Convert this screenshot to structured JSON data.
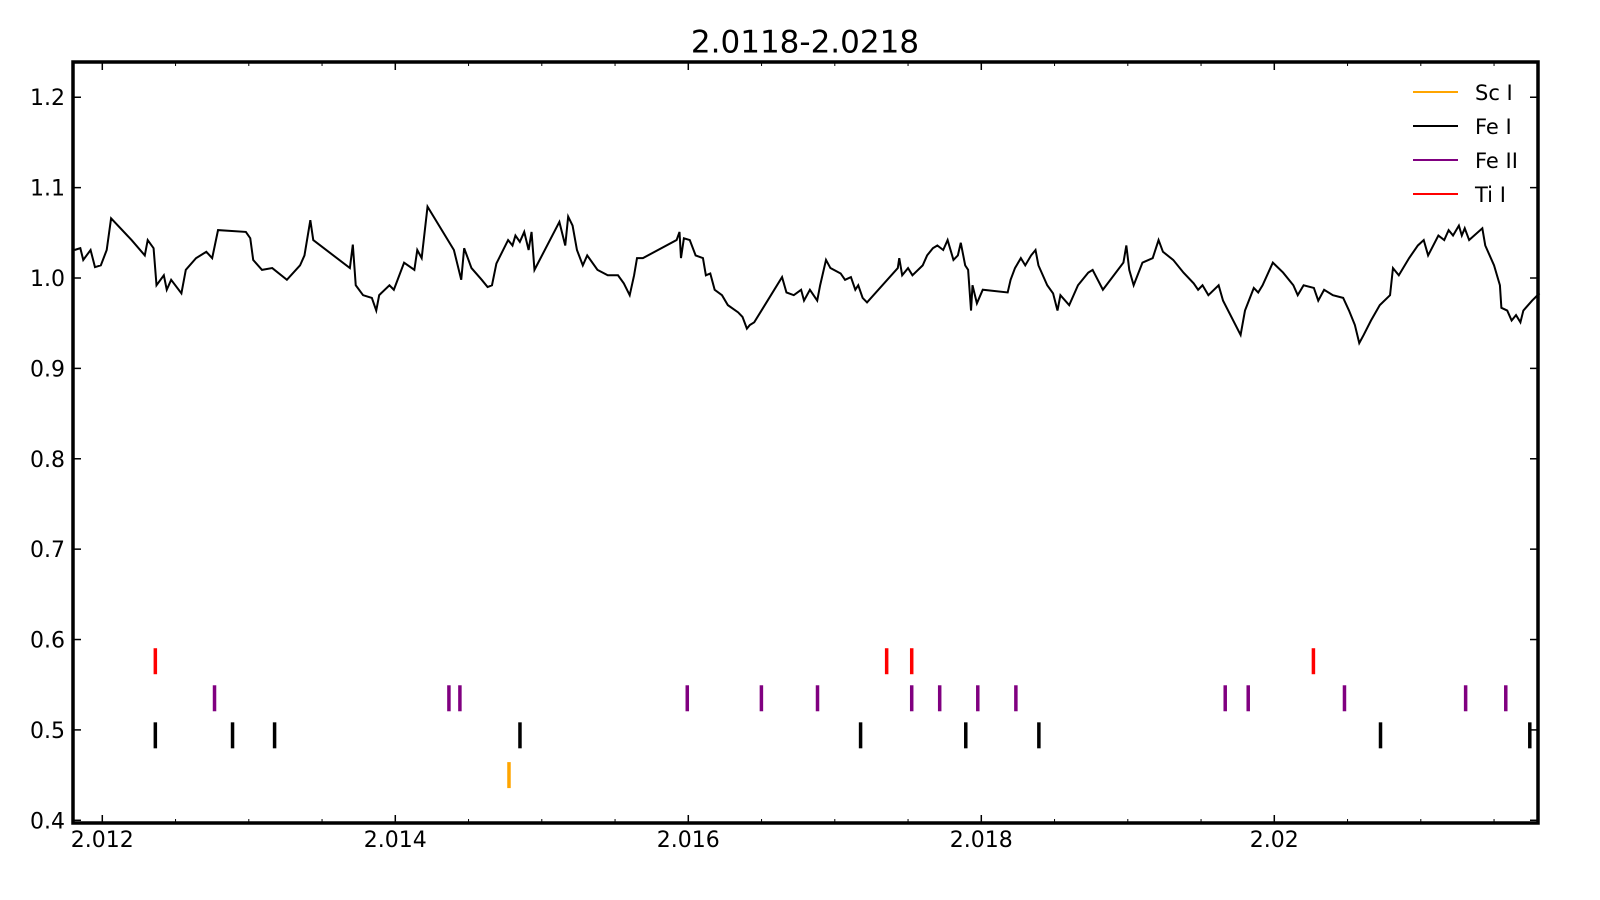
{
  "chart_data": {
    "type": "spectrum",
    "title": "2.0118-2.0218",
    "xlim": [
      2.0118,
      2.0218
    ],
    "ylim": [
      0.397,
      1.239
    ],
    "xticks": [
      2.012,
      2.014,
      2.016,
      2.018,
      2.02
    ],
    "xminorticks": [
      2.0125,
      2.013,
      2.0135,
      2.0145,
      2.015,
      2.0155,
      2.0165,
      2.017,
      2.0175,
      2.0185,
      2.019,
      2.0195,
      2.0205,
      2.021,
      2.0215
    ],
    "yticks": [
      0.4,
      0.5,
      0.6,
      0.7,
      0.8,
      0.9,
      {
        "value": 1,
        "label": "1.0"
      },
      1.1,
      1.2
    ],
    "legend": "upper right",
    "spectrum": {
      "color": "#000000",
      "x": [
        2.01181,
        2.01185,
        2.01187,
        2.01192,
        2.01195,
        2.01199,
        2.01203,
        2.01206,
        2.0122,
        2.01229,
        2.01231,
        2.01235,
        2.01237,
        2.01242,
        2.01244,
        2.01247,
        2.01254,
        2.01257,
        2.01264,
        2.01271,
        2.01275,
        2.01279,
        2.01298,
        2.01301,
        2.01303,
        2.01309,
        2.01316,
        2.01326,
        2.01335,
        2.01338,
        2.01342,
        2.01344,
        2.01369,
        2.01371,
        2.01373,
        2.01378,
        2.01384,
        2.01387,
        2.01389,
        2.01396,
        2.01399,
        2.01406,
        2.01413,
        2.01415,
        2.01418,
        2.01422,
        2.0144,
        2.01445,
        2.01447,
        2.01452,
        2.01459,
        2.01463,
        2.01466,
        2.01469,
        2.01477,
        2.0148,
        2.01482,
        2.01485,
        2.01488,
        2.01491,
        2.01493,
        2.01495,
        2.01512,
        2.01516,
        2.01518,
        2.01521,
        2.01524,
        2.01528,
        2.01531,
        2.01538,
        2.01545,
        2.01552,
        2.01556,
        2.0156,
        2.01563,
        2.01565,
        2.01569,
        2.01592,
        2.01594,
        2.01595,
        2.01597,
        2.01601,
        2.01605,
        2.0161,
        2.01612,
        2.01615,
        2.01618,
        2.01623,
        2.01627,
        2.01634,
        2.01637,
        2.0164,
        2.01642,
        2.01645,
        2.01664,
        2.01667,
        2.01672,
        2.01677,
        2.01679,
        2.01683,
        2.01688,
        2.0169,
        2.01694,
        2.01697,
        2.01704,
        2.01707,
        2.01711,
        2.01714,
        2.01716,
        2.01719,
        2.01722,
        2.01743,
        2.01744,
        2.01746,
        2.0175,
        2.01753,
        2.0176,
        2.01763,
        2.01767,
        2.0177,
        2.01774,
        2.01777,
        2.01781,
        2.01784,
        2.01786,
        2.01789,
        2.01791,
        2.01793,
        2.01794,
        2.01797,
        2.01801,
        2.01818,
        2.0182,
        2.01823,
        2.01827,
        2.0183,
        2.01834,
        2.01837,
        2.01839,
        2.01845,
        2.01849,
        2.01852,
        2.01854,
        2.0186,
        2.01866,
        2.01873,
        2.01876,
        2.01883,
        2.01897,
        2.01899,
        2.01901,
        2.01904,
        2.0191,
        2.01917,
        2.01921,
        2.01924,
        2.01931,
        2.01938,
        2.01945,
        2.01948,
        2.01951,
        2.01955,
        2.01962,
        2.01965,
        2.01977,
        2.0198,
        2.01986,
        2.01989,
        2.01992,
        2.01999,
        2.02006,
        2.02013,
        2.02016,
        2.0202,
        2.02027,
        2.0203,
        2.02034,
        2.0204,
        2.02047,
        2.02051,
        2.02055,
        2.02058,
        2.02061,
        2.02066,
        2.02072,
        2.02079,
        2.02081,
        2.02085,
        2.02092,
        2.02098,
        2.02102,
        2.02105,
        2.02112,
        2.02116,
        2.02119,
        2.02122,
        2.02126,
        2.02128,
        2.0213,
        2.02133,
        2.02142,
        2.02144,
        2.0215,
        2.02154,
        2.02155,
        2.02159,
        2.02162,
        2.02165,
        2.02168,
        2.0217,
        2.02176,
        2.02181
      ],
      "values": [
        1.031,
        1.033,
        1.02,
        1.031,
        1.012,
        1.014,
        1.031,
        1.066,
        1.042,
        1.025,
        1.042,
        1.033,
        0.992,
        1.003,
        0.987,
        0.998,
        0.983,
        1.009,
        1.022,
        1.029,
        1.022,
        1.053,
        1.051,
        1.044,
        1.02,
        1.009,
        1.011,
        0.998,
        1.014,
        1.025,
        1.064,
        1.042,
        1.011,
        1.037,
        0.992,
        0.981,
        0.978,
        0.964,
        0.981,
        0.992,
        0.987,
        1.017,
        1.009,
        1.031,
        1.022,
        1.079,
        1.031,
        0.998,
        1.033,
        1.011,
        0.998,
        0.99,
        0.992,
        1.016,
        1.042,
        1.036,
        1.047,
        1.04,
        1.051,
        1.031,
        1.051,
        1.009,
        1.062,
        1.036,
        1.068,
        1.058,
        1.031,
        1.014,
        1.025,
        1.009,
        1.003,
        1.003,
        0.994,
        0.981,
        1.003,
        1.022,
        1.022,
        1.042,
        1.051,
        1.022,
        1.044,
        1.042,
        1.025,
        1.022,
        1.003,
        1.005,
        0.987,
        0.981,
        0.97,
        0.962,
        0.957,
        0.944,
        0.948,
        0.951,
        1.001,
        0.984,
        0.981,
        0.987,
        0.975,
        0.987,
        0.975,
        0.992,
        1.02,
        1.011,
        1.005,
        0.998,
        1.001,
        0.987,
        0.992,
        0.978,
        0.973,
        1.011,
        1.022,
        1.003,
        1.011,
        1.003,
        1.014,
        1.025,
        1.033,
        1.036,
        1.031,
        1.042,
        1.02,
        1.025,
        1.039,
        1.014,
        1.009,
        0.964,
        0.992,
        0.972,
        0.987,
        0.984,
        0.998,
        1.011,
        1.022,
        1.014,
        1.025,
        1.031,
        1.014,
        0.992,
        0.983,
        0.964,
        0.981,
        0.97,
        0.992,
        1.006,
        1.009,
        0.987,
        1.017,
        1.036,
        1.009,
        0.992,
        1.017,
        1.022,
        1.042,
        1.029,
        1.02,
        1.006,
        0.994,
        0.987,
        0.992,
        0.981,
        0.992,
        0.975,
        0.937,
        0.964,
        0.989,
        0.984,
        0.992,
        1.017,
        1.006,
        0.992,
        0.981,
        0.992,
        0.989,
        0.975,
        0.987,
        0.981,
        0.978,
        0.964,
        0.948,
        0.928,
        0.937,
        0.953,
        0.97,
        0.981,
        1.011,
        1.003,
        1.022,
        1.036,
        1.042,
        1.025,
        1.047,
        1.042,
        1.053,
        1.047,
        1.058,
        1.047,
        1.055,
        1.042,
        1.055,
        1.036,
        1.014,
        0.992,
        0.967,
        0.964,
        0.953,
        0.959,
        0.951,
        0.964,
        0.975,
        0.983
      ]
    },
    "lines": [
      {
        "name": "Sc I",
        "color": "#ffa500",
        "level": 0.45,
        "x": [
          2.014776
        ]
      },
      {
        "name": "Fe I",
        "color": "#000000",
        "level": 0.494,
        "x": [
          2.012362,
          2.012889,
          2.013176,
          2.014851,
          2.017176,
          2.017894,
          2.018393,
          2.020725,
          2.021744
        ]
      },
      {
        "name": "Fe II",
        "color": "#800080",
        "level": 0.535,
        "x": [
          2.012766,
          2.014366,
          2.014441,
          2.015993,
          2.016499,
          2.016882,
          2.017525,
          2.017716,
          2.017976,
          2.018236,
          2.019665,
          2.019822,
          2.020479,
          2.021306,
          2.02158
        ]
      },
      {
        "name": "Ti I",
        "color": "#ff0000",
        "level": 0.576,
        "x": [
          2.012362,
          2.017354,
          2.017525,
          2.020267
        ]
      }
    ]
  }
}
